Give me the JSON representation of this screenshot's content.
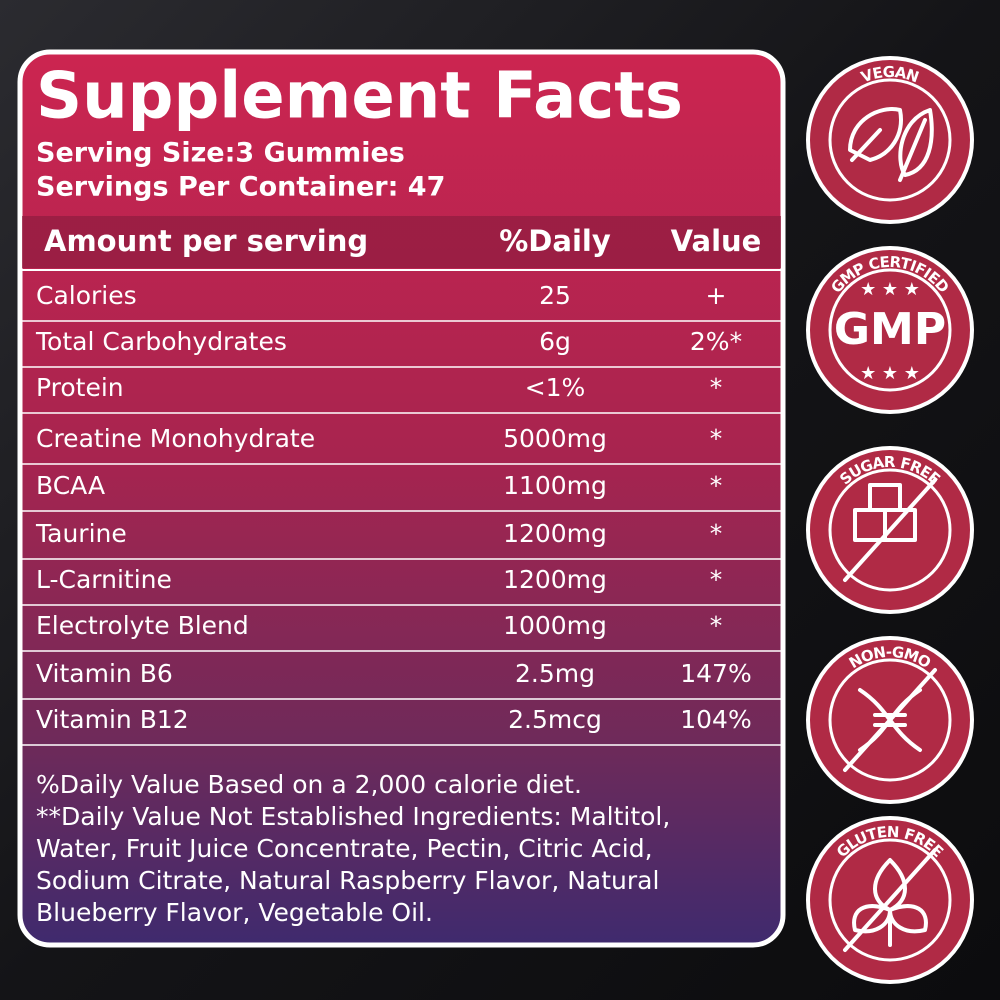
{
  "title": "Supplement Facts",
  "serving_size": "Serving Size:3 Gummies",
  "servings_per_container": "Servings Per Container: 47",
  "table": {
    "header": [
      "Amount per serving",
      "%Daily",
      "Value"
    ],
    "rows": [
      [
        "Calories",
        "25",
        "+"
      ],
      [
        "Total Carbohydrates",
        "6g",
        "2%*"
      ],
      [
        "Protein",
        "<1%",
        "*"
      ],
      [
        "Creatine Monohydrate",
        "5000mg",
        "*"
      ],
      [
        "BCAA",
        "1100mg",
        "*"
      ],
      [
        "Taurine",
        "1200mg",
        "*"
      ],
      [
        "L-Carnitine",
        "1200mg",
        "*"
      ],
      [
        "Electrolyte Blend",
        "1000mg",
        "*"
      ],
      [
        "Vitamin B6",
        "2.5mg",
        "147%"
      ],
      [
        "Vitamin B12",
        "2.5mcg",
        "104%"
      ]
    ]
  },
  "footnote": [
    "%Daily Value Based on a 2,000 calorie diet.",
    "**Daily Value Not Established Ingredients: Maltitol,",
    "Water, Fruit Juice Concentrate, Pectin, Citric Acid,",
    "Sodium Citrate, Natural Raspberry Flavor, Natural",
    "Blueberry Flavor, Vegetable Oil."
  ],
  "badges": [
    {
      "label": "VEGAN"
    },
    {
      "label": "GMP CERTIFIED",
      "center": "GMP"
    },
    {
      "label": "SUGAR FREE"
    },
    {
      "label": "NON-GMO"
    },
    {
      "label": "GLUTEN FREE"
    }
  ]
}
